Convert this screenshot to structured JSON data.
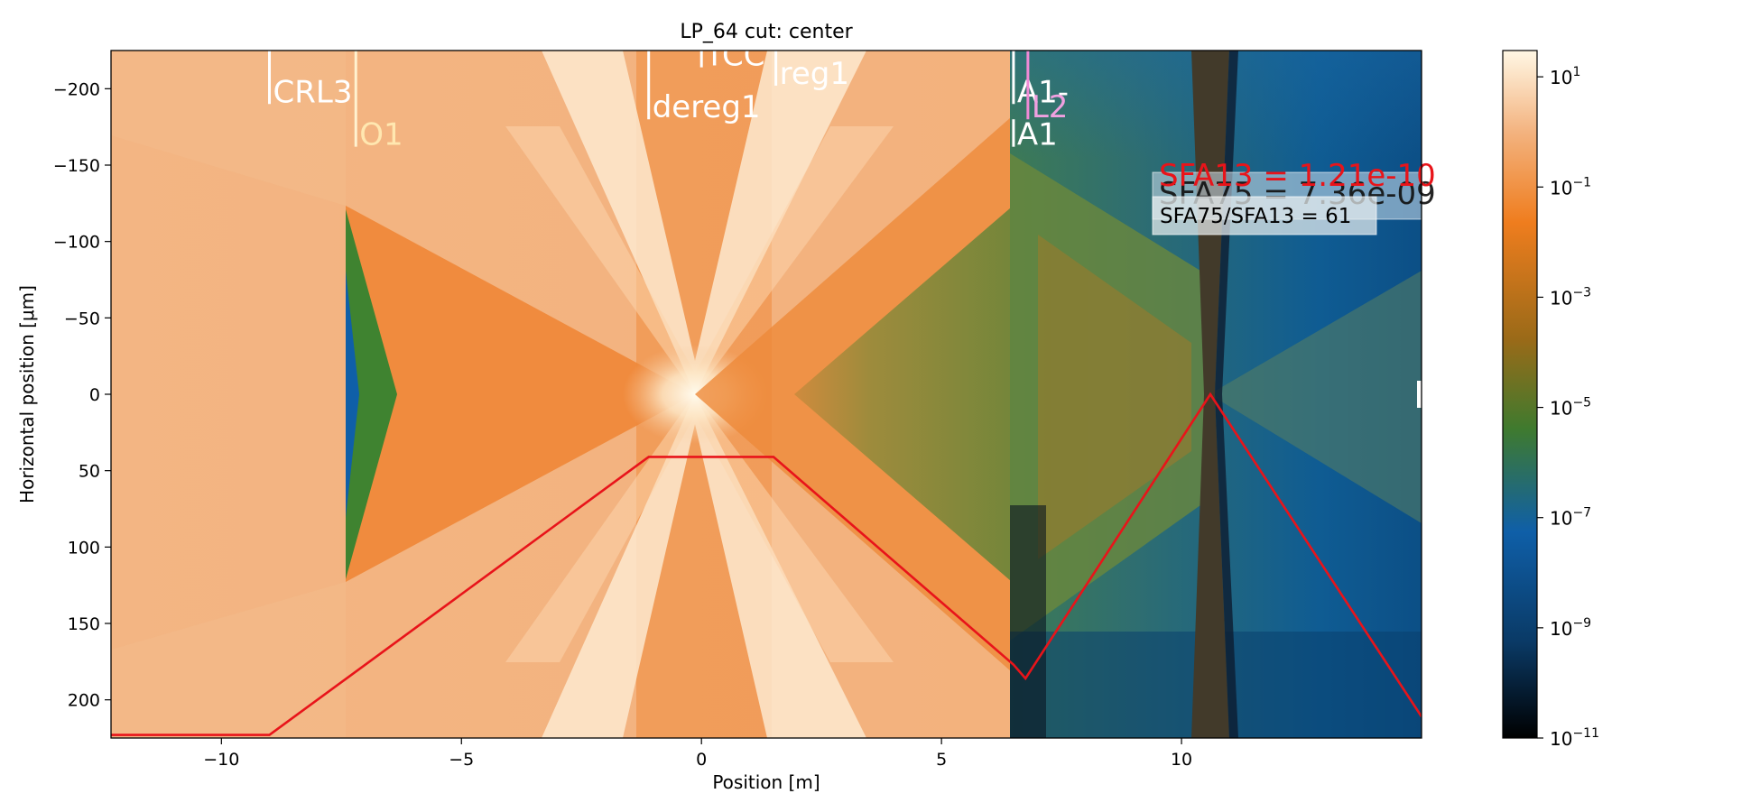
{
  "chart_data": [
    {
      "type": "heatmap",
      "title": "LP_64 cut: center",
      "xlabel": "Position [m]",
      "ylabel": "Horizontal position [μm]",
      "xlim": [
        -12.3,
        15.0
      ],
      "ylim": [
        225,
        -225
      ],
      "y_inverted": true,
      "x_ticks": [
        -10,
        -5,
        0,
        5,
        10
      ],
      "x_tick_labels": [
        "−10",
        "−5",
        "0",
        "5",
        "10"
      ],
      "y_ticks": [
        -200,
        -150,
        -100,
        -50,
        0,
        50,
        100,
        150,
        200
      ],
      "y_tick_labels": [
        "−200",
        "−150",
        "−100",
        "−50",
        "0",
        "50",
        "100",
        "150",
        "200"
      ],
      "colormap": "log-scaled intensity (black → blue → green → orange → cream)",
      "colorbar": {
        "scale": "log",
        "range": [
          1e-11,
          30
        ],
        "ticks": [
          {
            "value": 10.0,
            "base": "10",
            "exp": "1"
          },
          {
            "value": 0.1,
            "base": "10",
            "exp": "−1"
          },
          {
            "value": 0.001,
            "base": "10",
            "exp": "−3"
          },
          {
            "value": 1e-05,
            "base": "10",
            "exp": "−5"
          },
          {
            "value": 1e-07,
            "base": "10",
            "exp": "−7"
          },
          {
            "value": 1e-09,
            "base": "10",
            "exp": "−9"
          },
          {
            "value": 1e-11,
            "base": "10",
            "exp": "−11"
          }
        ],
        "colors": [
          "#000000",
          "#0a3a66",
          "#0f5fa8",
          "#3f7a2e",
          "#9a6a18",
          "#ef7d1e",
          "#f3b27e",
          "#fff7e4"
        ]
      },
      "element_markers": [
        {
          "name": "CRL3",
          "x": -9.0,
          "y_top": -225,
          "y_bottom": -190,
          "color": "#ffffff",
          "label_color": "#ffffff"
        },
        {
          "name": "O1",
          "x": -7.2,
          "y_top": -225,
          "y_bottom": -162,
          "color": "#fff2d0",
          "label_color": "#ffe7b0"
        },
        {
          "name": "dereg1",
          "x": -1.1,
          "y_top": -225,
          "y_bottom": -180,
          "color": "#ffffff",
          "label_color": "#ffffff"
        },
        {
          "name": "TCC",
          "x": 0.0,
          "y_top": -225,
          "y_bottom": -214,
          "color": "#ffffff",
          "label_color": "#ffffff"
        },
        {
          "name": "reg1",
          "x": 1.55,
          "y_top": -225,
          "y_bottom": -202,
          "color": "#ffffff",
          "label_color": "#ffffff"
        },
        {
          "name": "A1-",
          "x": 6.5,
          "y_top": -225,
          "y_bottom": -190,
          "color": "#ffffff",
          "label_color": "#ffffff"
        },
        {
          "name": "L2",
          "x": 6.8,
          "y_top": -225,
          "y_bottom": -180,
          "color": "#f08ad6",
          "label_color": "#f0a0e0"
        },
        {
          "name": "A1",
          "x": 6.5,
          "y_top": -180,
          "y_bottom": -162,
          "color": "#ffffff",
          "label_color": "#ffffff"
        }
      ],
      "aperture_line": {
        "color": "#e8141a",
        "points": [
          [
            -12.3,
            223
          ],
          [
            -9.0,
            223
          ],
          [
            -1.1,
            41
          ],
          [
            1.5,
            41
          ],
          [
            6.5,
            177
          ],
          [
            6.75,
            186
          ],
          [
            10.6,
            0
          ],
          [
            15.0,
            211
          ]
        ]
      },
      "annotations": {
        "sfa13": "SFA13 = 1.21e-10",
        "sfa75": "SFA75 = 7.36e-09",
        "ratio": "SFA75/SFA13 = 61"
      }
    }
  ]
}
